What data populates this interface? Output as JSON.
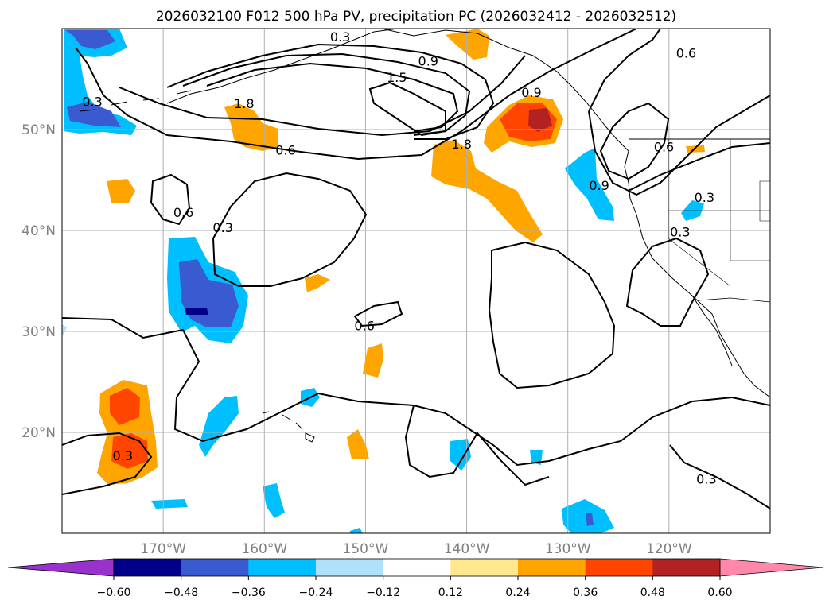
{
  "chart_data": {
    "type": "contour_map",
    "title": "2026032100 F012 500 hPa PV, precipitation PC (2026032412 - 2026032512)",
    "projection": "plate-carree",
    "lon_range": [
      -180,
      -110
    ],
    "lat_range": [
      10,
      60
    ],
    "lon_ticks": [
      -170,
      -160,
      -150,
      -140,
      -130,
      -120
    ],
    "lon_tick_labels": [
      "170°W",
      "160°W",
      "150°W",
      "140°W",
      "130°W",
      "120°W"
    ],
    "lat_ticks": [
      20,
      30,
      40,
      50
    ],
    "lat_tick_labels": [
      "20°N",
      "30°N",
      "40°N",
      "50°N"
    ],
    "grid": true,
    "colorbar": {
      "orientation": "horizontal",
      "extend": "both",
      "levels": [
        -0.6,
        -0.48,
        -0.36,
        -0.24,
        -0.12,
        0.12,
        0.24,
        0.36,
        0.48,
        0.6
      ],
      "tick_labels": [
        "−0.60",
        "−0.48",
        "−0.36",
        "−0.24",
        "−0.12",
        "0.12",
        "0.24",
        "0.36",
        "0.48",
        "0.60"
      ],
      "colors": [
        "#9932cc",
        "#00008b",
        "#3a5bd0",
        "#00bfff",
        "#aee2fa",
        "#ffffff",
        "#ffe98c",
        "#ffa500",
        "#ff4500",
        "#b22222",
        "#ff88aa"
      ]
    },
    "contour_labels": [
      {
        "text": "0.3",
        "lon": -152.5,
        "lat": 59.2
      },
      {
        "text": "0.9",
        "lon": -143.8,
        "lat": 56.8
      },
      {
        "text": "1.5",
        "lon": -146.9,
        "lat": 55.2
      },
      {
        "text": "1.8",
        "lon": -162.0,
        "lat": 52.6
      },
      {
        "text": "1.8",
        "lon": -140.5,
        "lat": 48.6
      },
      {
        "text": "0.6",
        "lon": -157.9,
        "lat": 48.0
      },
      {
        "text": "0.3",
        "lon": -177.0,
        "lat": 52.8
      },
      {
        "text": "0.6",
        "lon": -118.3,
        "lat": 57.6
      },
      {
        "text": "0.6",
        "lon": -120.5,
        "lat": 48.3
      },
      {
        "text": "0.9",
        "lon": -126.9,
        "lat": 44.5
      },
      {
        "text": "0.3",
        "lon": -116.5,
        "lat": 43.3
      },
      {
        "text": "0.3",
        "lon": -118.9,
        "lat": 39.9
      },
      {
        "text": "0.6",
        "lon": -168.0,
        "lat": 41.8
      },
      {
        "text": "0.3",
        "lon": -164.1,
        "lat": 40.3
      },
      {
        "text": "0.6",
        "lon": -150.1,
        "lat": 30.6
      },
      {
        "text": "0.3",
        "lon": -174.0,
        "lat": 17.7
      },
      {
        "text": "0.3",
        "lon": -116.3,
        "lat": 15.4
      },
      {
        "text": "0.9",
        "lon": -133.6,
        "lat": 53.7
      }
    ]
  }
}
